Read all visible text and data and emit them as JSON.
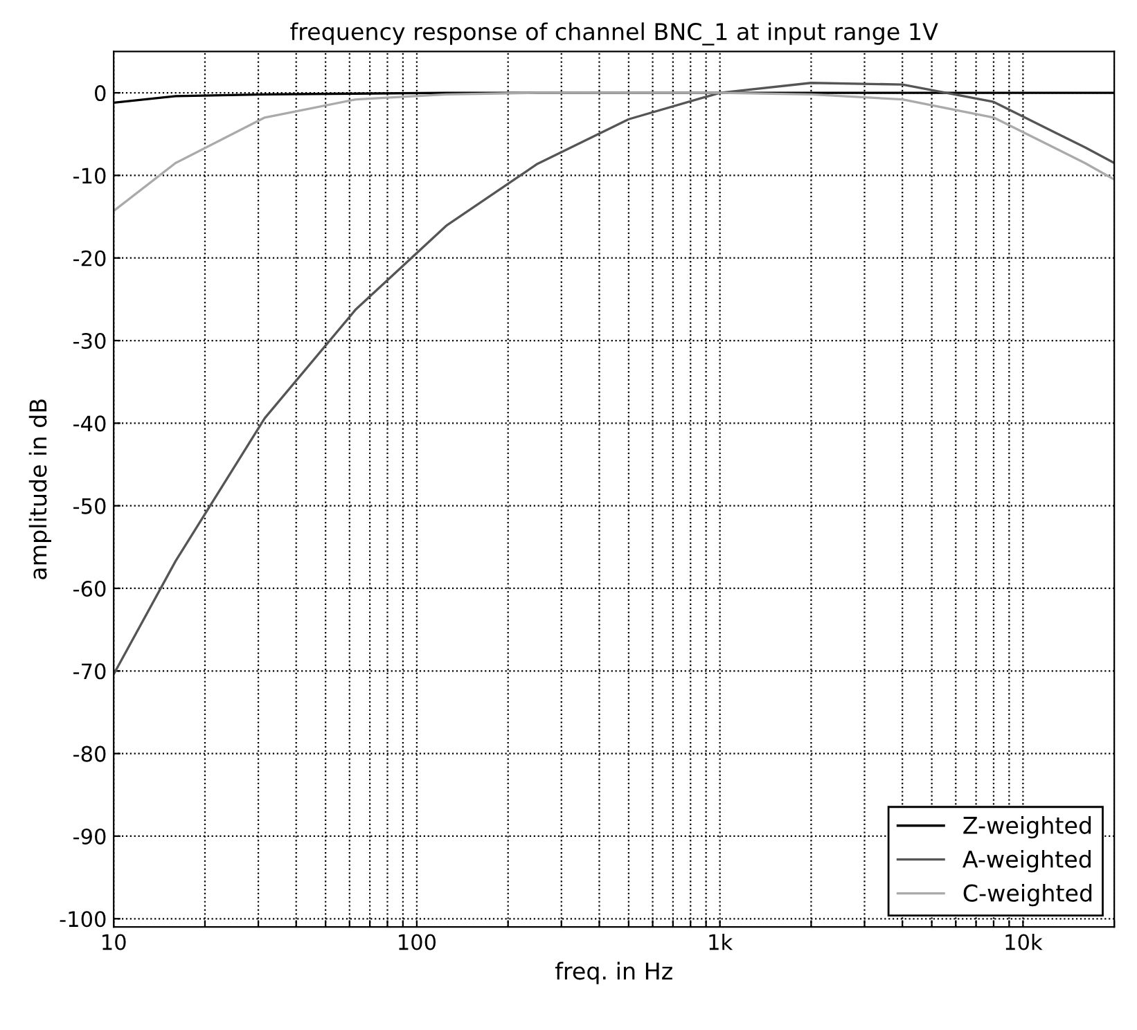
{
  "chart_data": {
    "type": "line",
    "title": "frequency response of channel BNC_1 at input range 1V",
    "xlabel": "freq. in Hz",
    "ylabel": "amplitude in dB",
    "log": "x",
    "xlim": [
      10,
      20000
    ],
    "xticks": [
      10,
      {
        "value": 20,
        "label": null
      },
      {
        "value": 30,
        "label": null
      },
      {
        "value": 40,
        "label": null
      },
      {
        "value": 50,
        "label": null
      },
      {
        "value": 60,
        "label": null
      },
      {
        "value": 70,
        "label": null
      },
      {
        "value": 80,
        "label": null
      },
      {
        "value": 90,
        "label": null
      },
      100,
      {
        "value": 200,
        "label": null
      },
      {
        "value": 300,
        "label": null
      },
      {
        "value": 400,
        "label": null
      },
      {
        "value": 500,
        "label": null
      },
      {
        "value": 600,
        "label": null
      },
      {
        "value": 700,
        "label": null
      },
      {
        "value": 800,
        "label": null
      },
      {
        "value": 900,
        "label": null
      },
      {
        "value": 1000,
        "label": "1k"
      },
      {
        "value": 2000,
        "label": null
      },
      {
        "value": 3000,
        "label": null
      },
      {
        "value": 4000,
        "label": null
      },
      {
        "value": 5000,
        "label": null
      },
      {
        "value": 6000,
        "label": null
      },
      {
        "value": 7000,
        "label": null
      },
      {
        "value": 8000,
        "label": null
      },
      {
        "value": 9000,
        "label": null
      },
      {
        "value": 10000,
        "label": "10k"
      },
      {
        "value": 20000,
        "label": null
      }
    ],
    "ylim": [
      -101,
      5
    ],
    "yticks": [
      -100,
      -90,
      -80,
      -70,
      -60,
      -50,
      -40,
      -30,
      -20,
      -10,
      0
    ],
    "grid": true,
    "legend": "bottom right",
    "marker": "none",
    "line_style": "solid",
    "x": [
      10,
      16,
      31.5,
      63,
      125,
      250,
      500,
      1000,
      2000,
      4000,
      8000,
      16000,
      20000
    ],
    "series": [
      {
        "name": "Z-weighted",
        "color": "#000000",
        "values": [
          -1.2,
          -0.4,
          -0.2,
          -0.1,
          0,
          0,
          0,
          0,
          0,
          0,
          0,
          0,
          0
        ]
      },
      {
        "name": "A-weighted",
        "color": "#555555",
        "values": [
          -70.4,
          -56.7,
          -39.4,
          -26.2,
          -16.1,
          -8.6,
          -3.2,
          0,
          1.2,
          1.0,
          -1.1,
          -6.6,
          -8.5
        ]
      },
      {
        "name": "C-weighted",
        "color": "#aaaaaa",
        "values": [
          -14.3,
          -8.5,
          -3.0,
          -0.8,
          -0.2,
          0,
          0,
          0,
          -0.2,
          -0.8,
          -3.0,
          -8.5,
          -10.5
        ]
      }
    ]
  }
}
